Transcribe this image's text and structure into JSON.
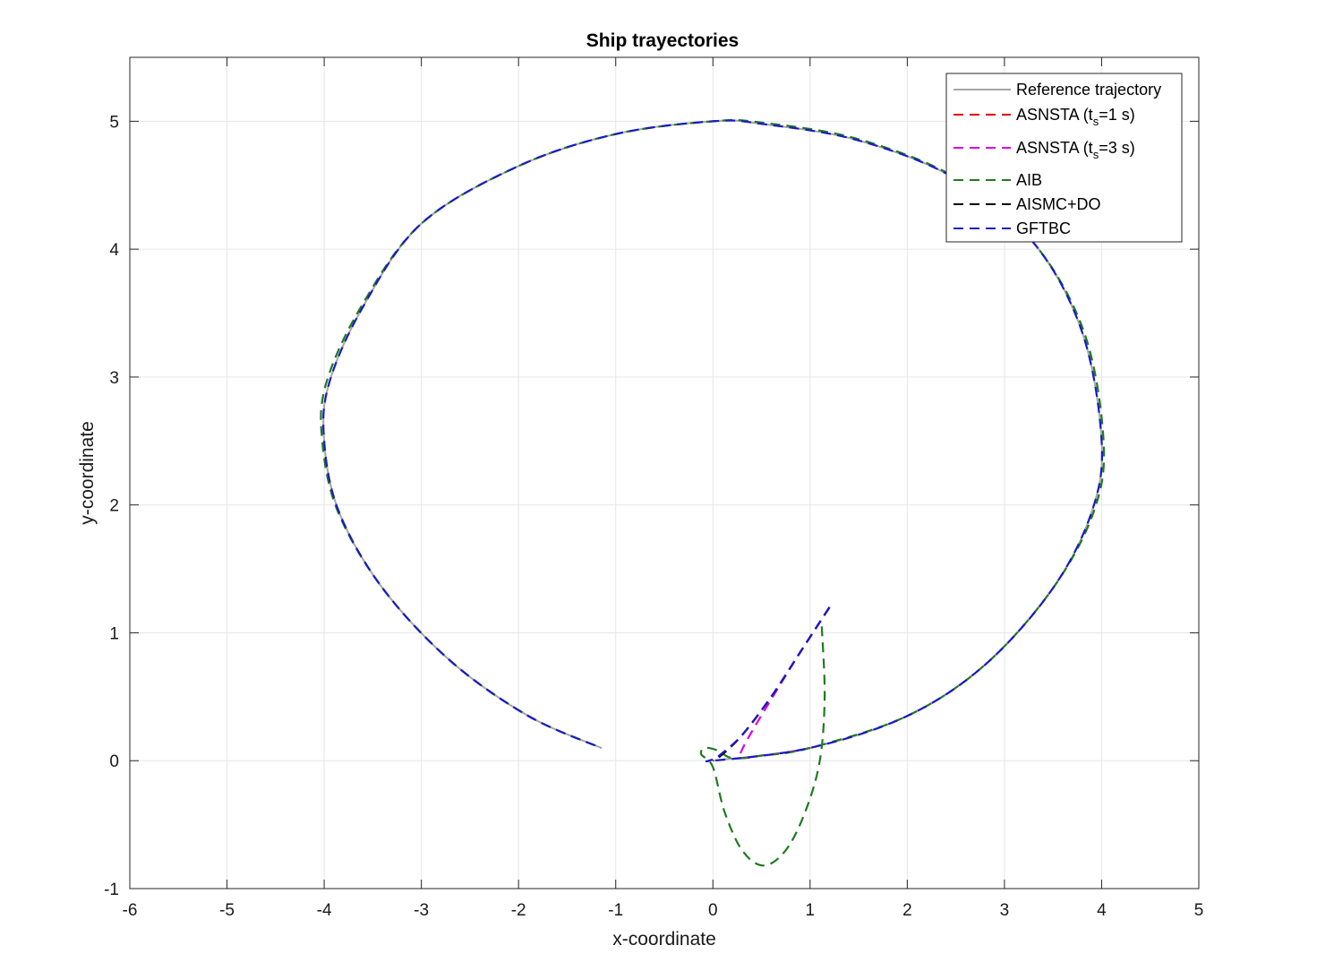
{
  "chart_data": {
    "type": "line",
    "title": "Ship trayectories",
    "xlabel": "x-coordinate",
    "ylabel": "y-coordinate",
    "xlim": [
      -6,
      5
    ],
    "ylim": [
      -1,
      5.5
    ],
    "xticks": [
      "-6",
      "-5",
      "-4",
      "-3",
      "-2",
      "-1",
      "0",
      "1",
      "2",
      "3",
      "4",
      "5"
    ],
    "yticks": [
      "-1",
      "0",
      "1",
      "2",
      "3",
      "4",
      "5"
    ],
    "grid": true,
    "legend_position": "top-right",
    "legend": [
      {
        "pre": "Reference trajectory",
        "sub": "",
        "post": "",
        "color": "#a6a6a6",
        "dash": "solid"
      },
      {
        "pre": "ASNSTA (t",
        "sub": "s",
        "post": "=1 s)",
        "color": "#e00000",
        "dash": "dashed"
      },
      {
        "pre": "ASNSTA (t",
        "sub": "s",
        "post": "=3 s)",
        "color": "#e000e0",
        "dash": "dashed"
      },
      {
        "pre": "AIB",
        "sub": "",
        "post": "",
        "color": "#1f7a1f",
        "dash": "dashed"
      },
      {
        "pre": "AISMC+DO",
        "sub": "",
        "post": "",
        "color": "#000000",
        "dash": "dashed"
      },
      {
        "pre": "GFTBC",
        "sub": "",
        "post": "",
        "color": "#1a1ac8",
        "dash": "dashed"
      }
    ],
    "series": [
      {
        "name": "Reference trajectory",
        "color": "#a6a6a6",
        "dash": "solid",
        "x": [
          0,
          1.0,
          2.0,
          2.8,
          3.5,
          3.9,
          4.0,
          3.8,
          3.3,
          2.5,
          1.5,
          0.5,
          0,
          -1.0,
          -2.0,
          -3.0,
          -3.6,
          -3.95,
          -4.0,
          -3.85,
          -3.4,
          -2.7,
          -1.9,
          -1.15
        ],
        "y": [
          0,
          0.1,
          0.35,
          0.75,
          1.35,
          1.95,
          2.5,
          3.35,
          4.05,
          4.55,
          4.85,
          4.98,
          5.0,
          4.9,
          4.65,
          4.2,
          3.55,
          2.95,
          2.5,
          1.95,
          1.35,
          0.78,
          0.35,
          0.1
        ]
      },
      {
        "name": "ASNSTA (ts=1 s)",
        "color": "#e00000",
        "dash": "dashed",
        "x": [
          1.2,
          0.9,
          0.6,
          0.3,
          0.1,
          0.0
        ],
        "y": [
          1.2,
          0.85,
          0.5,
          0.2,
          0.05,
          0.0
        ]
      },
      {
        "name": "ASNSTA (ts=3 s)",
        "color": "#e000e0",
        "dash": "dashed",
        "x": [
          1.2,
          0.9,
          0.6,
          0.38,
          0.28,
          0.3,
          0.5,
          0.8,
          1.0
        ],
        "y": [
          1.2,
          0.85,
          0.48,
          0.2,
          0.05,
          0.02,
          0.04,
          0.07,
          0.1
        ]
      },
      {
        "name": "AIB",
        "color": "#1f7a1f",
        "dash": "dashed",
        "x": [
          1.12,
          1.15,
          1.1,
          0.95,
          0.75,
          0.52,
          0.3,
          0.12,
          0.0,
          -0.12,
          -0.08,
          0.05,
          0.2,
          0.5,
          1.0,
          2.0,
          2.8,
          3.5,
          3.92,
          4.02,
          3.82,
          3.3,
          2.52,
          1.5,
          0.5,
          0,
          -1.0,
          -2.0,
          -3.0,
          -3.62,
          -3.98,
          -4.02,
          -3.86,
          -3.4,
          -2.7,
          -1.9,
          -1.15
        ],
        "y": [
          1.05,
          0.5,
          0.0,
          -0.4,
          -0.7,
          -0.82,
          -0.7,
          -0.4,
          -0.05,
          0.05,
          0.1,
          0.08,
          0.02,
          0.04,
          0.1,
          0.35,
          0.75,
          1.35,
          1.95,
          2.5,
          3.35,
          4.05,
          4.55,
          4.86,
          4.99,
          5.0,
          4.9,
          4.65,
          4.2,
          3.55,
          2.95,
          2.5,
          1.95,
          1.35,
          0.78,
          0.35,
          0.1
        ]
      },
      {
        "name": "AISMC+DO",
        "color": "#000000",
        "dash": "dashed",
        "x": [
          1.2,
          0.9,
          0.6,
          0.3,
          0.08,
          0.0
        ],
        "y": [
          1.2,
          0.85,
          0.5,
          0.2,
          0.04,
          0.0
        ]
      },
      {
        "name": "GFTBC",
        "color": "#1a1ac8",
        "dash": "dashed",
        "x": [
          1.2,
          0.9,
          0.6,
          0.3,
          0.05,
          0.0,
          1.0,
          2.0,
          2.8,
          3.5,
          3.9,
          4.0,
          3.8,
          3.3,
          2.5,
          1.5,
          0.5,
          0,
          -1.0,
          -2.0,
          -3.0,
          -3.6,
          -3.95,
          -4.0,
          -3.85,
          -3.4,
          -2.7,
          -1.9,
          -1.15
        ],
        "y": [
          1.2,
          0.85,
          0.5,
          0.2,
          0.03,
          0.0,
          0.1,
          0.35,
          0.75,
          1.35,
          1.95,
          2.5,
          3.35,
          4.05,
          4.55,
          4.85,
          4.98,
          5.0,
          4.9,
          4.65,
          4.2,
          3.55,
          2.95,
          2.5,
          1.95,
          1.35,
          0.78,
          0.35,
          0.1
        ]
      }
    ]
  }
}
